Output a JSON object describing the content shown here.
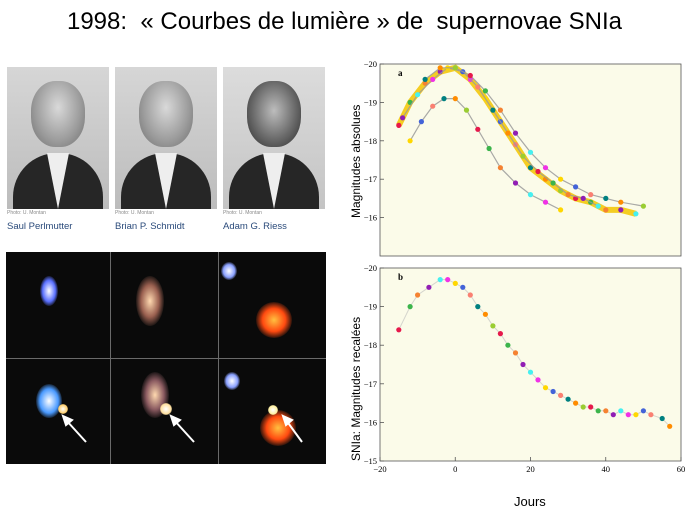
{
  "title": "1998:  « Courbes de lumière » de  supernovae SNIa",
  "people": [
    {
      "credit": "Photo: U. Montan",
      "name": "Saul Perlmutter"
    },
    {
      "credit": "Photo: U. Montan",
      "name": "Brian P. Schmidt"
    },
    {
      "credit": "Photo: U. Montan",
      "name": "Adam G. Riess"
    }
  ],
  "colors": {
    "band_yellow": "#f2c400",
    "band_orange": "#e88a1c",
    "panel_bg": "#fbfbe9",
    "line": "#9a9a9a"
  },
  "chart_data": [
    {
      "type": "scatter",
      "panel_label": "a",
      "ylabel": "Magnitudes absolues",
      "xlim": [
        -20,
        60
      ],
      "ylim": [
        -15,
        -20
      ],
      "yticks": [
        -20,
        -19,
        -18,
        -17,
        -16
      ],
      "y_inverted": true,
      "description": "",
      "series": [
        {
          "name": "",
          "points": [
            [
              -15,
              -18.4
            ],
            [
              -12,
              -19.0
            ],
            [
              -8,
              -19.5
            ],
            [
              -4,
              -19.8
            ],
            [
              0,
              -19.9
            ],
            [
              4,
              -19.6
            ],
            [
              8,
              -19.1
            ],
            [
              12,
              -18.5
            ],
            [
              16,
              -17.9
            ],
            [
              20,
              -17.3
            ],
            [
              24,
              -17.0
            ],
            [
              28,
              -16.7
            ],
            [
              32,
              -16.5
            ],
            [
              36,
              -16.4
            ],
            [
              40,
              -16.2
            ],
            [
              44,
              -16.2
            ],
            [
              48,
              -16.1
            ]
          ]
        },
        {
          "name": "",
          "points": [
            [
              -14,
              -18.6
            ],
            [
              -10,
              -19.2
            ],
            [
              -6,
              -19.6
            ],
            [
              -2,
              -19.9
            ],
            [
              2,
              -19.8
            ],
            [
              6,
              -19.4
            ],
            [
              10,
              -18.8
            ],
            [
              14,
              -18.2
            ],
            [
              18,
              -17.6
            ],
            [
              22,
              -17.2
            ],
            [
              26,
              -16.9
            ],
            [
              30,
              -16.6
            ],
            [
              34,
              -16.5
            ],
            [
              38,
              -16.3
            ]
          ]
        },
        {
          "name": "",
          "points": [
            [
              -12,
              -18.0
            ],
            [
              -9,
              -18.5
            ],
            [
              -6,
              -18.9
            ],
            [
              -3,
              -19.1
            ],
            [
              0,
              -19.1
            ],
            [
              3,
              -18.8
            ],
            [
              6,
              -18.3
            ],
            [
              9,
              -17.8
            ],
            [
              12,
              -17.3
            ],
            [
              16,
              -16.9
            ],
            [
              20,
              -16.6
            ],
            [
              24,
              -16.4
            ],
            [
              28,
              -16.2
            ]
          ]
        },
        {
          "name": "",
          "points": [
            [
              -8,
              -19.6
            ],
            [
              -4,
              -19.9
            ],
            [
              0,
              -19.9
            ],
            [
              4,
              -19.7
            ],
            [
              8,
              -19.3
            ],
            [
              12,
              -18.8
            ],
            [
              16,
              -18.2
            ],
            [
              20,
              -17.7
            ],
            [
              24,
              -17.3
            ],
            [
              28,
              -17.0
            ],
            [
              32,
              -16.8
            ],
            [
              36,
              -16.6
            ],
            [
              40,
              -16.5
            ],
            [
              44,
              -16.4
            ],
            [
              50,
              -16.3
            ]
          ]
        }
      ]
    },
    {
      "type": "scatter",
      "panel_label": "b",
      "ylabel": "SNIa:  Magnitudes recalées",
      "xlabel": "Jours",
      "xlim": [
        -20,
        60
      ],
      "ylim": [
        -15,
        -20
      ],
      "xticks": [
        -20,
        0,
        20,
        40,
        60
      ],
      "yticks": [
        -20,
        -19,
        -18,
        -17,
        -16,
        -15
      ],
      "y_inverted": true,
      "series": [
        {
          "name": "",
          "points": [
            [
              -15,
              -18.4
            ],
            [
              -12,
              -19.0
            ],
            [
              -10,
              -19.3
            ],
            [
              -7,
              -19.5
            ],
            [
              -4,
              -19.7
            ],
            [
              -2,
              -19.7
            ],
            [
              0,
              -19.6
            ],
            [
              2,
              -19.5
            ],
            [
              4,
              -19.3
            ],
            [
              6,
              -19.0
            ],
            [
              8,
              -18.8
            ],
            [
              10,
              -18.5
            ],
            [
              12,
              -18.3
            ],
            [
              14,
              -18.0
            ],
            [
              16,
              -17.8
            ],
            [
              18,
              -17.5
            ],
            [
              20,
              -17.3
            ],
            [
              22,
              -17.1
            ],
            [
              24,
              -16.9
            ],
            [
              26,
              -16.8
            ],
            [
              28,
              -16.7
            ],
            [
              30,
              -16.6
            ],
            [
              32,
              -16.5
            ],
            [
              34,
              -16.4
            ],
            [
              36,
              -16.4
            ],
            [
              38,
              -16.3
            ],
            [
              40,
              -16.3
            ],
            [
              42,
              -16.2
            ],
            [
              44,
              -16.3
            ],
            [
              46,
              -16.2
            ],
            [
              48,
              -16.2
            ],
            [
              50,
              -16.3
            ],
            [
              52,
              -16.2
            ],
            [
              55,
              -16.1
            ],
            [
              57,
              -15.9
            ]
          ]
        }
      ]
    }
  ]
}
